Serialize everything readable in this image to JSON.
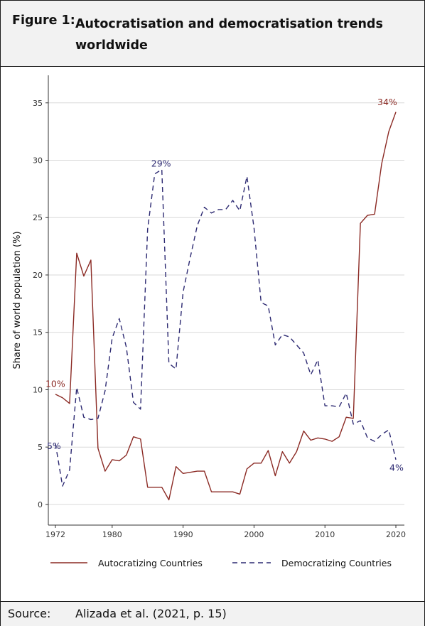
{
  "figure": {
    "label": "Figure 1:",
    "title": "Autocratisation and democratisation trends worldwide"
  },
  "source": {
    "label": "Source:",
    "text": "Alizada et al. (2021, p. 15)"
  },
  "colors": {
    "autocratizing": "#8b2a24",
    "democratizing": "#2d2a72",
    "grid": "#d9d9d9",
    "panel_bg": "#f2f2f2"
  },
  "chart_data": {
    "type": "line",
    "title": "",
    "xlabel": "",
    "ylabel": "Share of world population (%)",
    "xlim": [
      1972,
      2020
    ],
    "ylim": [
      0,
      35
    ],
    "x_ticks": [
      1972,
      1980,
      1990,
      2000,
      2010,
      2020
    ],
    "y_ticks": [
      0,
      5,
      10,
      15,
      20,
      25,
      30,
      35
    ],
    "grid": "horizontal",
    "legend_position": "bottom",
    "x": [
      1972,
      1973,
      1974,
      1975,
      1976,
      1977,
      1978,
      1979,
      1980,
      1981,
      1982,
      1983,
      1984,
      1985,
      1986,
      1987,
      1988,
      1989,
      1990,
      1991,
      1992,
      1993,
      1994,
      1995,
      1996,
      1997,
      1998,
      1999,
      2000,
      2001,
      2002,
      2003,
      2004,
      2005,
      2006,
      2007,
      2008,
      2009,
      2010,
      2011,
      2012,
      2013,
      2014,
      2015,
      2016,
      2017,
      2018,
      2019,
      2020
    ],
    "series": [
      {
        "name": "Autocratizing Countries",
        "style": "solid",
        "values": [
          9.6,
          9.3,
          8.8,
          21.9,
          19.9,
          21.3,
          4.9,
          2.9,
          3.9,
          3.8,
          4.3,
          5.9,
          5.7,
          1.5,
          1.5,
          1.5,
          0.4,
          3.3,
          2.7,
          2.8,
          2.9,
          2.9,
          1.1,
          1.1,
          1.1,
          1.1,
          0.9,
          3.1,
          3.6,
          3.6,
          4.7,
          2.5,
          4.6,
          3.6,
          4.6,
          6.4,
          5.6,
          5.8,
          5.7,
          5.5,
          5.9,
          7.6,
          7.5,
          24.5,
          25.2,
          25.3,
          29.7,
          32.5,
          34.2
        ]
      },
      {
        "name": "Democratizing Countries",
        "style": "dashed",
        "values": [
          5.3,
          1.6,
          3.0,
          10.2,
          7.6,
          7.4,
          7.5,
          9.9,
          14.5,
          16.2,
          13.7,
          8.9,
          8.3,
          24.0,
          28.8,
          29.2,
          12.3,
          11.8,
          18.5,
          21.5,
          24.3,
          25.9,
          25.4,
          25.7,
          25.7,
          26.5,
          25.6,
          28.6,
          24.1,
          17.6,
          17.3,
          13.9,
          14.8,
          14.6,
          13.9,
          13.2,
          11.3,
          12.6,
          8.6,
          8.6,
          8.5,
          9.7,
          7.0,
          7.3,
          5.8,
          5.5,
          6.1,
          6.5,
          3.9
        ]
      }
    ],
    "annotations": [
      {
        "text": "10%",
        "x": 1972,
        "y": 10,
        "series": "Autocratizing Countries"
      },
      {
        "text": "5%",
        "x": 1972,
        "y": 5,
        "series": "Democratizing Countries"
      },
      {
        "text": "29%",
        "x": 1987,
        "y": 29,
        "series": "Democratizing Countries"
      },
      {
        "text": "34%",
        "x": 2020,
        "y": 34,
        "series": "Autocratizing Countries"
      },
      {
        "text": "4%",
        "x": 2020,
        "y": 4,
        "series": "Democratizing Countries"
      }
    ]
  }
}
